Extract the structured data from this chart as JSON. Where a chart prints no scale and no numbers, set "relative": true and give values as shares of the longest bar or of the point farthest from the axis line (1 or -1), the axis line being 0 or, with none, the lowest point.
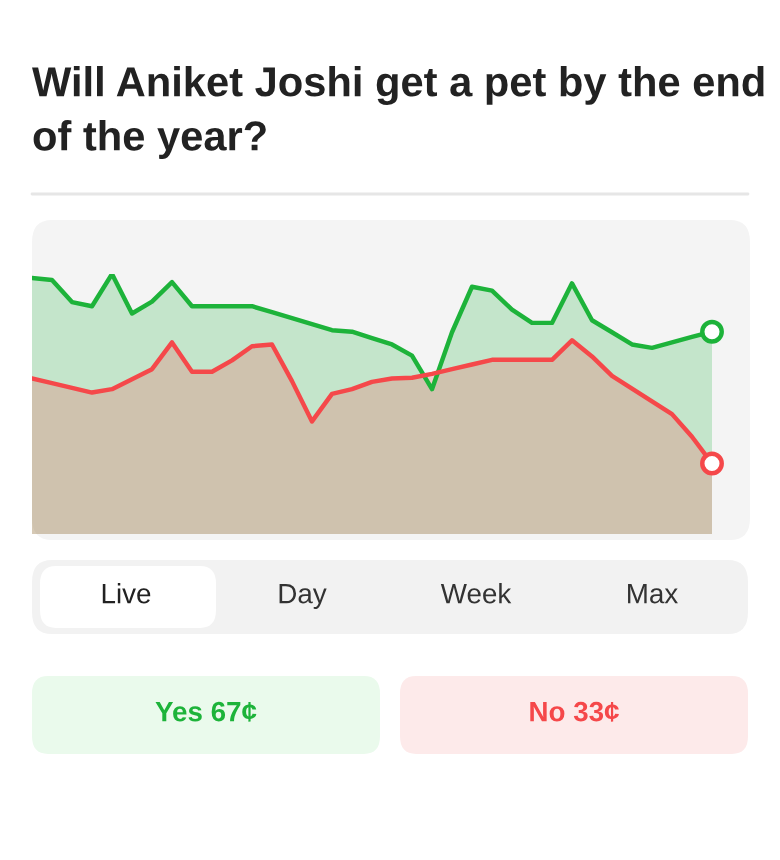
{
  "chart_data": {
    "type": "area",
    "title": "Will Aniket Joshi get a pet by the end of the year?",
    "relative": true,
    "legend": false,
    "annotations": [
      "Live",
      "Day",
      "Week",
      "Max",
      "Yes 67¢",
      "No 33¢"
    ],
    "categories": [
      null,
      null,
      null,
      null,
      null,
      null,
      null,
      null,
      null,
      null,
      null,
      null,
      null,
      null,
      null,
      null,
      null,
      null,
      null,
      null,
      null,
      null,
      null,
      null,
      null,
      null,
      null,
      null,
      null,
      null,
      null,
      null,
      null,
      null,
      null
    ],
    "series": [
      {
        "color": "#1db33a",
        "values": [
          0.985,
          0.977,
          0.892,
          0.876,
          1,
          0.848,
          0.894,
          0.969,
          0.876,
          0.876,
          0.876,
          0.876,
          0.853,
          0.83,
          0.807,
          0.784,
          0.778,
          0.753,
          0.729,
          0.686,
          0.557,
          0.776,
          0.951,
          0.936,
          0.863,
          0.812,
          0.812,
          0.964,
          0.822,
          0.776,
          0.729,
          0.716,
          0.737,
          0.758,
          0.778
        ]
      },
      {
        "color": "#f5484a",
        "values": [
          0.598,
          0.58,
          0.562,
          0.544,
          0.557,
          0.595,
          0.634,
          0.737,
          0.624,
          0.624,
          0.668,
          0.722,
          0.729,
          0.588,
          0.433,
          0.539,
          0.557,
          0.585,
          0.598,
          0.601,
          0.616,
          0.634,
          0.652,
          0.67,
          0.67,
          0.67,
          0.67,
          0.745,
          0.683,
          0.608,
          0.559,
          0.51,
          0.461,
          0.374,
          0.271
        ]
      }
    ]
  }
}
